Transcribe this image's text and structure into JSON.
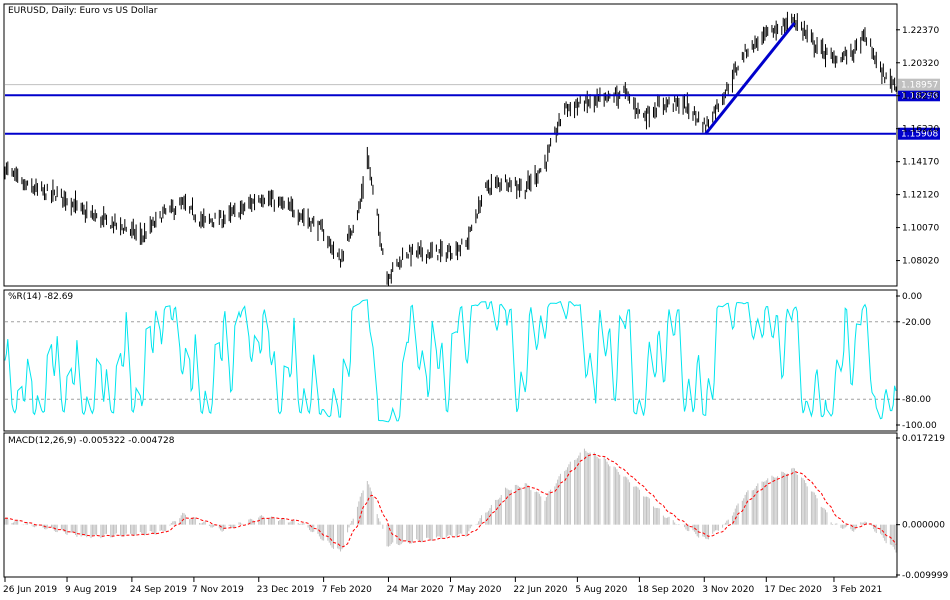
{
  "chart_data": [
    {
      "type": "bar",
      "title": "EURUSD, Daily:  Euro vs US Dollar",
      "ylim": [
        1.065,
        1.2385
      ],
      "y_ticks": [
        "1.22370",
        "1.20320",
        "1.18270",
        "1.16220",
        "1.14170",
        "1.12120",
        "1.10070",
        "1.08020"
      ],
      "current_price": "1.18957",
      "levels": [
        {
          "label": "1.18298",
          "value": 1.18298,
          "color": "#0000cc"
        },
        {
          "label": "1.15908",
          "value": 1.15908,
          "color": "#0000cc"
        }
      ],
      "trendline": {
        "from": {
          "date": "2020-11-04",
          "value": 1.159
        },
        "to": {
          "date": "2021-01-06",
          "value": 1.228
        },
        "color": "#0000cc"
      },
      "close_path": [
        [
          "2019-06-26",
          1.1375
        ],
        [
          "2019-07-10",
          1.1265
        ],
        [
          "2019-07-24",
          1.1225
        ],
        [
          "2019-08-07",
          1.12
        ],
        [
          "2019-08-21",
          1.11
        ],
        [
          "2019-09-04",
          1.105
        ],
        [
          "2019-09-18",
          1.101
        ],
        [
          "2019-10-02",
          1.095
        ],
        [
          "2019-10-16",
          1.109
        ],
        [
          "2019-10-30",
          1.115
        ],
        [
          "2019-11-13",
          1.1045
        ],
        [
          "2019-11-27",
          1.106
        ],
        [
          "2019-12-11",
          1.112
        ],
        [
          "2019-12-25",
          1.12
        ],
        [
          "2020-01-08",
          1.115
        ],
        [
          "2020-01-22",
          1.109
        ],
        [
          "2020-02-05",
          1.1
        ],
        [
          "2020-02-19",
          1.08
        ],
        [
          "2020-03-04",
          1.115
        ],
        [
          "2020-03-09",
          1.145
        ],
        [
          "2020-03-23",
          1.07
        ],
        [
          "2020-04-06",
          1.085
        ],
        [
          "2020-04-20",
          1.085
        ],
        [
          "2020-05-04",
          1.085
        ],
        [
          "2020-05-18",
          1.09
        ],
        [
          "2020-06-01",
          1.125
        ],
        [
          "2020-06-15",
          1.13
        ],
        [
          "2020-06-29",
          1.125
        ],
        [
          "2020-07-13",
          1.14
        ],
        [
          "2020-07-27",
          1.175
        ],
        [
          "2020-08-10",
          1.178
        ],
        [
          "2020-08-24",
          1.18
        ],
        [
          "2020-09-07",
          1.185
        ],
        [
          "2020-09-21",
          1.17
        ],
        [
          "2020-10-05",
          1.178
        ],
        [
          "2020-10-19",
          1.178
        ],
        [
          "2020-11-04",
          1.164
        ],
        [
          "2020-11-18",
          1.185
        ],
        [
          "2020-12-02",
          1.21
        ],
        [
          "2020-12-16",
          1.22
        ],
        [
          "2021-01-06",
          1.23
        ],
        [
          "2021-01-20",
          1.215
        ],
        [
          "2021-02-03",
          1.205
        ],
        [
          "2021-02-17",
          1.21
        ],
        [
          "2021-02-25",
          1.22
        ],
        [
          "2021-03-10",
          1.195
        ],
        [
          "2021-03-19",
          1.19
        ]
      ]
    },
    {
      "type": "line",
      "title": "%R(14) -82.69",
      "ylim": [
        -100,
        0
      ],
      "y_ticks": [
        "0.00",
        "-20.00",
        "-80.00",
        "-100.00"
      ],
      "dashed_levels": [
        -20,
        -80
      ],
      "color": "#00e5ee"
    },
    {
      "type": "bar",
      "title": "MACD(12,26,9) -0.005322 -0.004728",
      "ylim": [
        -0.009999,
        0.017219
      ],
      "y_ticks": [
        "0.017219",
        "0.000000",
        "-0.009999"
      ],
      "histogram_color": "#c0c0c0",
      "signal_color": "#ff0000",
      "macd_path": [
        [
          "2019-06-26",
          0.001
        ],
        [
          "2019-07-24",
          -0.0005
        ],
        [
          "2019-08-21",
          -0.0025
        ],
        [
          "2019-09-18",
          -0.002
        ],
        [
          "2019-10-16",
          -0.0015
        ],
        [
          "2019-10-30",
          0.002
        ],
        [
          "2019-11-27",
          -0.001
        ],
        [
          "2019-12-25",
          0.0015
        ],
        [
          "2020-01-22",
          0.0005
        ],
        [
          "2020-02-19",
          -0.0055
        ],
        [
          "2020-03-09",
          0.009
        ],
        [
          "2020-03-23",
          -0.004
        ],
        [
          "2020-04-20",
          -0.003
        ],
        [
          "2020-05-18",
          -0.002
        ],
        [
          "2020-06-15",
          0.007
        ],
        [
          "2020-06-29",
          0.008
        ],
        [
          "2020-07-13",
          0.005
        ],
        [
          "2020-07-27",
          0.011
        ],
        [
          "2020-08-10",
          0.015
        ],
        [
          "2020-08-24",
          0.013
        ],
        [
          "2020-09-21",
          0.006
        ],
        [
          "2020-10-05",
          0.002
        ],
        [
          "2020-11-04",
          -0.003
        ],
        [
          "2020-11-18",
          0.0
        ],
        [
          "2020-12-02",
          0.006
        ],
        [
          "2020-12-16",
          0.009
        ],
        [
          "2021-01-06",
          0.011
        ],
        [
          "2021-01-20",
          0.006
        ],
        [
          "2021-02-03",
          0.0
        ],
        [
          "2021-02-17",
          -0.001
        ],
        [
          "2021-02-25",
          0.001
        ],
        [
          "2021-03-19",
          -0.0053
        ]
      ]
    }
  ],
  "x_axis": {
    "labels": [
      {
        "text": "26 Jun 2019",
        "date": "2019-06-26"
      },
      {
        "text": "9 Aug 2019",
        "date": "2019-08-09"
      },
      {
        "text": "24 Sep 2019",
        "date": "2019-09-24"
      },
      {
        "text": "7 Nov 2019",
        "date": "2019-11-07"
      },
      {
        "text": "23 Dec 2019",
        "date": "2019-12-23"
      },
      {
        "text": "7 Feb 2020",
        "date": "2020-02-07"
      },
      {
        "text": "24 Mar 2020",
        "date": "2020-03-24"
      },
      {
        "text": "7 May 2020",
        "date": "2020-05-07"
      },
      {
        "text": "22 Jun 2020",
        "date": "2020-06-22"
      },
      {
        "text": "5 Aug 2020",
        "date": "2020-08-05"
      },
      {
        "text": "18 Sep 2020",
        "date": "2020-09-18"
      },
      {
        "text": "3 Nov 2020",
        "date": "2020-11-03"
      },
      {
        "text": "17 Dec 2020",
        "date": "2020-12-17"
      },
      {
        "text": "3 Feb 2021",
        "date": "2021-02-03"
      }
    ],
    "range": [
      "2019-06-26",
      "2021-03-19"
    ]
  }
}
